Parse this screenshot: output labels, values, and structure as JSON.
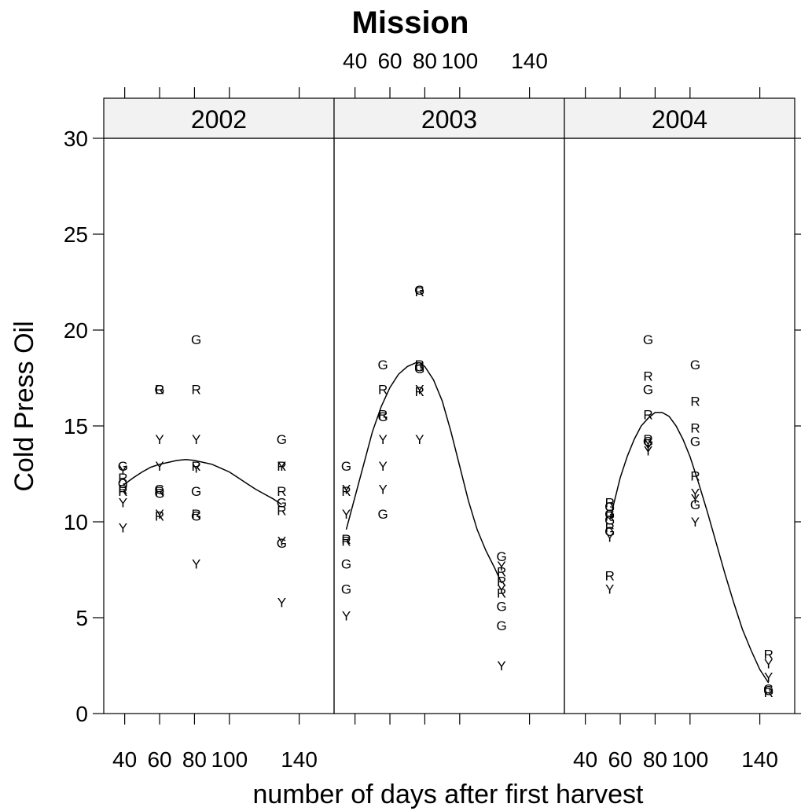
{
  "chart_data": {
    "type": "scatter",
    "title": "Mission",
    "xlabel": "number of days after first harvest",
    "ylabel": "Cold Press Oil",
    "xlim": [
      28,
      160
    ],
    "ylim": [
      0,
      30
    ],
    "x_ticks": [
      40,
      60,
      80,
      100,
      140
    ],
    "x_tick_labels": [
      "40",
      "60",
      "80",
      "100",
      "140"
    ],
    "y_ticks": [
      0,
      5,
      10,
      15,
      20,
      25,
      30
    ],
    "y_tick_labels": [
      "0",
      "5",
      "10",
      "15",
      "20",
      "25",
      "30"
    ],
    "panels": [
      {
        "label": "2002",
        "points": [
          {
            "x": 39,
            "y": 12.9,
            "label": "G"
          },
          {
            "x": 39,
            "y": 12.7,
            "label": "Y"
          },
          {
            "x": 39,
            "y": 12.3,
            "label": "R"
          },
          {
            "x": 39,
            "y": 12.0,
            "label": "G"
          },
          {
            "x": 39,
            "y": 11.7,
            "label": "R"
          },
          {
            "x": 39,
            "y": 11.6,
            "label": "R"
          },
          {
            "x": 39,
            "y": 11.0,
            "label": "Y"
          },
          {
            "x": 39,
            "y": 9.7,
            "label": "Y"
          },
          {
            "x": 60,
            "y": 16.9,
            "label": "G"
          },
          {
            "x": 60,
            "y": 16.9,
            "label": "R"
          },
          {
            "x": 60,
            "y": 14.3,
            "label": "Y"
          },
          {
            "x": 60,
            "y": 12.9,
            "label": "Y"
          },
          {
            "x": 60,
            "y": 11.7,
            "label": "G"
          },
          {
            "x": 60,
            "y": 11.6,
            "label": "R"
          },
          {
            "x": 60,
            "y": 11.5,
            "label": "G"
          },
          {
            "x": 60,
            "y": 10.4,
            "label": "Y"
          },
          {
            "x": 60,
            "y": 10.3,
            "label": "R"
          },
          {
            "x": 81,
            "y": 19.5,
            "label": "G"
          },
          {
            "x": 81,
            "y": 16.9,
            "label": "R"
          },
          {
            "x": 81,
            "y": 14.3,
            "label": "Y"
          },
          {
            "x": 81,
            "y": 12.9,
            "label": "R"
          },
          {
            "x": 81,
            "y": 12.8,
            "label": "Y"
          },
          {
            "x": 81,
            "y": 11.6,
            "label": "G"
          },
          {
            "x": 81,
            "y": 10.4,
            "label": "R"
          },
          {
            "x": 81,
            "y": 10.3,
            "label": "G"
          },
          {
            "x": 81,
            "y": 7.8,
            "label": "Y"
          },
          {
            "x": 130,
            "y": 14.3,
            "label": "G"
          },
          {
            "x": 130,
            "y": 12.9,
            "label": "Y"
          },
          {
            "x": 130,
            "y": 12.9,
            "label": "R"
          },
          {
            "x": 130,
            "y": 11.6,
            "label": "R"
          },
          {
            "x": 130,
            "y": 11.0,
            "label": "G"
          },
          {
            "x": 130,
            "y": 10.6,
            "label": "R"
          },
          {
            "x": 130,
            "y": 9.0,
            "label": "Y"
          },
          {
            "x": 130,
            "y": 8.9,
            "label": "G"
          },
          {
            "x": 130,
            "y": 5.8,
            "label": "Y"
          }
        ],
        "curve": {
          "x": [
            39,
            45,
            50,
            55,
            60,
            65,
            70,
            75,
            80,
            85,
            90,
            95,
            100,
            105,
            110,
            115,
            120,
            125,
            130
          ],
          "y": [
            11.9,
            12.3,
            12.6,
            12.85,
            13.0,
            13.1,
            13.2,
            13.25,
            13.2,
            13.1,
            13.0,
            12.8,
            12.6,
            12.3,
            12.0,
            11.7,
            11.45,
            11.2,
            10.9
          ]
        }
      },
      {
        "label": "2003",
        "points": [
          {
            "x": 35,
            "y": 12.9,
            "label": "G"
          },
          {
            "x": 35,
            "y": 11.7,
            "label": "Y"
          },
          {
            "x": 35,
            "y": 11.6,
            "label": "R"
          },
          {
            "x": 35,
            "y": 10.4,
            "label": "Y"
          },
          {
            "x": 35,
            "y": 9.1,
            "label": "R"
          },
          {
            "x": 35,
            "y": 9.0,
            "label": "R"
          },
          {
            "x": 35,
            "y": 7.8,
            "label": "G"
          },
          {
            "x": 35,
            "y": 6.5,
            "label": "G"
          },
          {
            "x": 35,
            "y": 5.1,
            "label": "Y"
          },
          {
            "x": 56,
            "y": 18.2,
            "label": "G"
          },
          {
            "x": 56,
            "y": 16.9,
            "label": "R"
          },
          {
            "x": 56,
            "y": 15.6,
            "label": "R"
          },
          {
            "x": 56,
            "y": 15.5,
            "label": "G"
          },
          {
            "x": 56,
            "y": 14.3,
            "label": "Y"
          },
          {
            "x": 56,
            "y": 12.9,
            "label": "Y"
          },
          {
            "x": 56,
            "y": 11.7,
            "label": "Y"
          },
          {
            "x": 56,
            "y": 10.4,
            "label": "G"
          },
          {
            "x": 77,
            "y": 22.1,
            "label": "G"
          },
          {
            "x": 77,
            "y": 22.0,
            "label": "R"
          },
          {
            "x": 77,
            "y": 18.2,
            "label": "R"
          },
          {
            "x": 77,
            "y": 18.1,
            "label": "G"
          },
          {
            "x": 77,
            "y": 18.0,
            "label": "G"
          },
          {
            "x": 77,
            "y": 16.9,
            "label": "Y"
          },
          {
            "x": 77,
            "y": 16.8,
            "label": "R"
          },
          {
            "x": 77,
            "y": 14.3,
            "label": "Y"
          },
          {
            "x": 124,
            "y": 8.2,
            "label": "G"
          },
          {
            "x": 124,
            "y": 7.7,
            "label": "Y"
          },
          {
            "x": 124,
            "y": 7.4,
            "label": "R"
          },
          {
            "x": 124,
            "y": 6.9,
            "label": "R"
          },
          {
            "x": 124,
            "y": 6.5,
            "label": "Y"
          },
          {
            "x": 124,
            "y": 6.3,
            "label": "R"
          },
          {
            "x": 124,
            "y": 5.6,
            "label": "G"
          },
          {
            "x": 124,
            "y": 4.6,
            "label": "G"
          },
          {
            "x": 124,
            "y": 2.5,
            "label": "Y"
          }
        ],
        "curve": {
          "x": [
            35,
            40,
            45,
            50,
            55,
            60,
            65,
            70,
            75,
            77,
            80,
            85,
            90,
            95,
            100,
            105,
            110,
            115,
            120,
            124
          ],
          "y": [
            9.6,
            11.3,
            13.0,
            14.7,
            16.0,
            17.0,
            17.7,
            18.1,
            18.3,
            18.3,
            18.1,
            17.4,
            16.3,
            14.7,
            12.9,
            11.1,
            9.6,
            8.5,
            7.6,
            6.8
          ]
        }
      },
      {
        "label": "2004",
        "points": [
          {
            "x": 54,
            "y": 11.0,
            "label": "R"
          },
          {
            "x": 54,
            "y": 10.8,
            "label": "G"
          },
          {
            "x": 54,
            "y": 10.4,
            "label": "G"
          },
          {
            "x": 54,
            "y": 10.3,
            "label": "R"
          },
          {
            "x": 54,
            "y": 10.1,
            "label": "G"
          },
          {
            "x": 54,
            "y": 9.7,
            "label": "R"
          },
          {
            "x": 54,
            "y": 9.5,
            "label": "G"
          },
          {
            "x": 54,
            "y": 9.2,
            "label": "Y"
          },
          {
            "x": 54,
            "y": 7.2,
            "label": "R"
          },
          {
            "x": 54,
            "y": 6.5,
            "label": "Y"
          },
          {
            "x": 76,
            "y": 19.5,
            "label": "G"
          },
          {
            "x": 76,
            "y": 17.6,
            "label": "R"
          },
          {
            "x": 76,
            "y": 16.9,
            "label": "G"
          },
          {
            "x": 76,
            "y": 15.6,
            "label": "R"
          },
          {
            "x": 76,
            "y": 14.3,
            "label": "R"
          },
          {
            "x": 76,
            "y": 14.2,
            "label": "G"
          },
          {
            "x": 76,
            "y": 14.1,
            "label": "Y"
          },
          {
            "x": 76,
            "y": 13.9,
            "label": "Y"
          },
          {
            "x": 76,
            "y": 13.7,
            "label": "Y"
          },
          {
            "x": 103,
            "y": 18.2,
            "label": "G"
          },
          {
            "x": 103,
            "y": 16.3,
            "label": "R"
          },
          {
            "x": 103,
            "y": 14.9,
            "label": "R"
          },
          {
            "x": 103,
            "y": 14.2,
            "label": "G"
          },
          {
            "x": 103,
            "y": 12.4,
            "label": "R"
          },
          {
            "x": 103,
            "y": 11.5,
            "label": "Y"
          },
          {
            "x": 103,
            "y": 11.2,
            "label": "Y"
          },
          {
            "x": 103,
            "y": 10.9,
            "label": "G"
          },
          {
            "x": 103,
            "y": 10.0,
            "label": "Y"
          },
          {
            "x": 145,
            "y": 3.1,
            "label": "R"
          },
          {
            "x": 145,
            "y": 2.6,
            "label": "Y"
          },
          {
            "x": 145,
            "y": 1.9,
            "label": "Y"
          },
          {
            "x": 145,
            "y": 1.3,
            "label": "G"
          },
          {
            "x": 145,
            "y": 1.2,
            "label": "G"
          },
          {
            "x": 145,
            "y": 1.1,
            "label": "R"
          }
        ],
        "curve": {
          "x": [
            54,
            57,
            60,
            64,
            68,
            72,
            76,
            80,
            84,
            88,
            92,
            96,
            100,
            105,
            110,
            115,
            120,
            125,
            130,
            135,
            140,
            145
          ],
          "y": [
            10.1,
            11.2,
            12.3,
            13.4,
            14.3,
            15.0,
            15.4,
            15.7,
            15.7,
            15.5,
            15.0,
            14.3,
            13.4,
            12.0,
            10.5,
            8.9,
            7.3,
            5.8,
            4.4,
            3.3,
            2.3,
            1.6
          ]
        }
      }
    ]
  }
}
